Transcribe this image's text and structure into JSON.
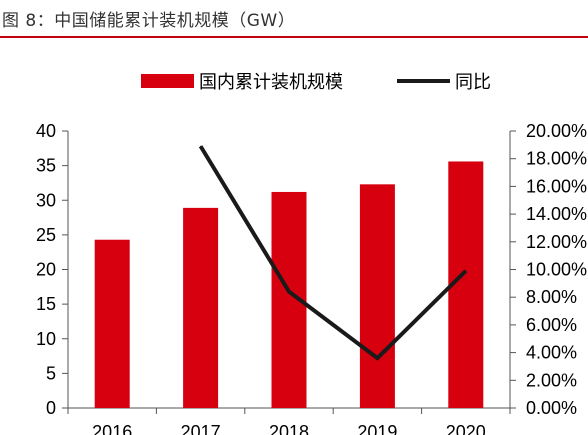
{
  "figure": {
    "title": "图 8：中国储能累计装机规模（GW）"
  },
  "colors": {
    "bar": "#d7000f",
    "line": "#1a1a1a",
    "rule": "#c0000c"
  },
  "chart_data": {
    "type": "bar",
    "categories": [
      "2016",
      "2017",
      "2018",
      "2019",
      "2020"
    ],
    "series": [
      {
        "name": "国内累计装机规模",
        "type": "bar",
        "axis": "left",
        "values": [
          24.3,
          28.9,
          31.2,
          32.3,
          35.6
        ]
      },
      {
        "name": "同比",
        "type": "line",
        "axis": "right",
        "values": [
          null,
          18.9,
          8.4,
          3.6,
          9.9
        ]
      }
    ],
    "y_left": {
      "min": 0,
      "max": 40,
      "ticks": [
        "0",
        "5",
        "10",
        "15",
        "20",
        "25",
        "30",
        "35",
        "40"
      ]
    },
    "y_right": {
      "min": 0,
      "max": 20,
      "ticks": [
        "0.00%",
        "2.00%",
        "4.00%",
        "6.00%",
        "8.00%",
        "10.00%",
        "12.00%",
        "14.00%",
        "16.00%",
        "18.00%",
        "20.00%"
      ]
    },
    "legend": {
      "position": "top",
      "items": [
        "国内累计装机规模",
        "同比"
      ]
    },
    "grid": false
  }
}
